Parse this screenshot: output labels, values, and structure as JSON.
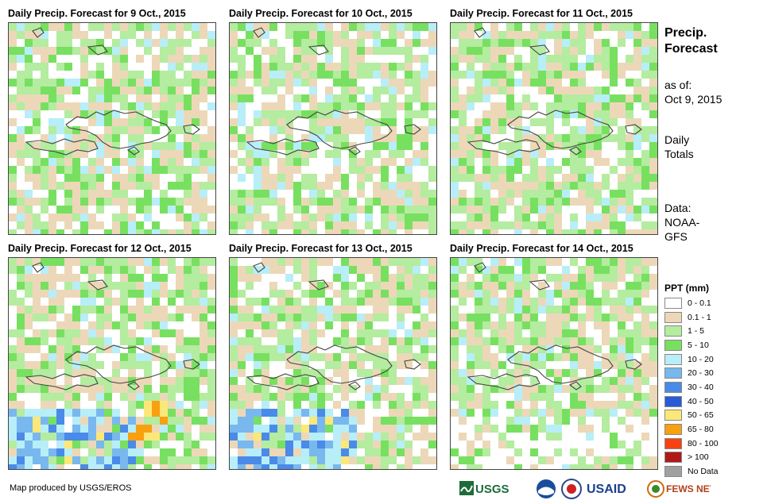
{
  "panels": [
    {
      "title": "Daily Precip. Forecast for 9 Oct., 2015",
      "day": 9
    },
    {
      "title": "Daily Precip. Forecast for 10 Oct., 2015",
      "day": 10
    },
    {
      "title": "Daily Precip. Forecast for 11 Oct., 2015",
      "day": 11
    },
    {
      "title": "Daily Precip. Forecast for 12 Oct., 2015",
      "day": 12
    },
    {
      "title": "Daily Precip. Forecast for 13 Oct., 2015",
      "day": 13
    },
    {
      "title": "Daily Precip. Forecast for 14 Oct., 2015",
      "day": 14
    }
  ],
  "side": {
    "title_line1": "Precip.",
    "title_line2": "Forecast",
    "asof_line1": "as of:",
    "asof_line2": "Oct 9, 2015",
    "totals_line1": "Daily",
    "totals_line2": "Totals",
    "data_line1": "Data:",
    "data_line2": "NOAA-",
    "data_line3": "GFS"
  },
  "legend": {
    "title": "PPT (mm)",
    "items": [
      {
        "label": "0 - 0.1",
        "color": "#ffffff"
      },
      {
        "label": "0.1 - 1",
        "color": "#ecd8b8"
      },
      {
        "label": "1 - 5",
        "color": "#b4eca0"
      },
      {
        "label": "5 - 10",
        "color": "#78e060"
      },
      {
        "label": "10 - 20",
        "color": "#b8eef8"
      },
      {
        "label": "20 - 30",
        "color": "#78b8ee"
      },
      {
        "label": "30 - 40",
        "color": "#4a8ae8"
      },
      {
        "label": "40 - 50",
        "color": "#2a5ad8"
      },
      {
        "label": "50 - 65",
        "color": "#fce878"
      },
      {
        "label": "65 - 80",
        "color": "#f8a010"
      },
      {
        "label": "80 - 100",
        "color": "#f84010"
      },
      {
        "label": "> 100",
        "color": "#b01818"
      },
      {
        "label": "No Data",
        "color": "#a0a0a0"
      }
    ]
  },
  "credit": "Map produced by USGS/EROS",
  "logos": {
    "usgs": "USGS",
    "usaid": "USAID",
    "fewsnet": "FEWS NET"
  }
}
